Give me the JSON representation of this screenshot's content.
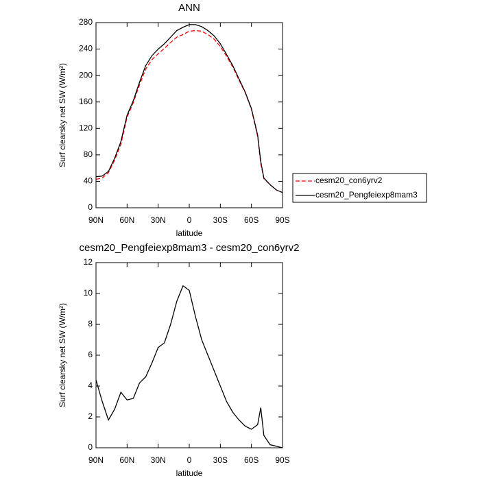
{
  "chart_data": [
    {
      "type": "line",
      "title": "ANN",
      "x_label": "latitude",
      "y_label": "Surf clearsky net SW (W/m²)",
      "x": [
        90,
        84,
        78,
        72,
        66,
        60,
        54,
        48,
        42,
        36,
        30,
        24,
        18,
        12,
        6,
        0,
        -6,
        -12,
        -18,
        -24,
        -30,
        -36,
        -42,
        -48,
        -54,
        -60,
        -66,
        -69,
        -72,
        -78,
        -84,
        -90
      ],
      "series": [
        {
          "name": "cesm20_con6yrv2",
          "color": "#ff0000",
          "dash": true,
          "values": [
            43,
            45,
            53,
            72,
            96,
            137,
            159,
            186,
            210,
            224,
            233,
            241,
            250,
            258,
            262,
            267,
            268,
            267,
            262,
            255,
            244,
            229,
            213,
            193,
            174,
            149,
            108,
            67,
            44,
            35,
            27,
            23
          ]
        },
        {
          "name": "cesm20_Pengfeiexp8mam3",
          "color": "#000000",
          "dash": false,
          "values": [
            47,
            48,
            55,
            75,
            100,
            140,
            162,
            190,
            215,
            230,
            240,
            248,
            258,
            268,
            273,
            277,
            277,
            274,
            268,
            260,
            248,
            232,
            215,
            195,
            175,
            150,
            110,
            70,
            45,
            35,
            27,
            23
          ]
        }
      ],
      "xlim": [
        90,
        -90
      ],
      "xticks": [
        {
          "value": 90,
          "label": "90N"
        },
        {
          "value": 60,
          "label": "60N"
        },
        {
          "value": 30,
          "label": "30N"
        },
        0,
        {
          "value": -30,
          "label": "30S"
        },
        {
          "value": -60,
          "label": "60S"
        },
        {
          "value": -90,
          "label": "90S"
        }
      ],
      "ylim": [
        0,
        280
      ],
      "yticks": [
        0,
        40,
        80,
        120,
        160,
        200,
        240,
        280
      ],
      "legend": "right"
    },
    {
      "type": "line",
      "title": "cesm20_Pengfeiexp8mam3 - cesm20_con6yrv2",
      "x_label": "latitude",
      "y_label": "Surf clearsky net SW (W/m²)",
      "x": [
        90,
        84,
        78,
        72,
        66,
        60,
        54,
        48,
        42,
        36,
        30,
        24,
        18,
        12,
        6,
        0,
        -6,
        -12,
        -18,
        -24,
        -30,
        -36,
        -42,
        -48,
        -54,
        -60,
        -66,
        -69,
        -72,
        -78,
        -84,
        -90
      ],
      "series": [
        {
          "color": "#000000",
          "dash": false,
          "values": [
            4.4,
            3,
            1.8,
            2.5,
            3.6,
            3.1,
            3.2,
            4.2,
            4.6,
            5.5,
            6.5,
            6.8,
            8,
            9.5,
            10.5,
            10.2,
            8.5,
            7,
            6,
            5,
            4,
            3,
            2.3,
            1.8,
            1.4,
            1.2,
            1.5,
            2.6,
            0.8,
            0.2,
            0.1,
            0
          ]
        }
      ],
      "xlim": [
        90,
        -90
      ],
      "xticks": [
        {
          "value": 90,
          "label": "90N"
        },
        {
          "value": 60,
          "label": "60N"
        },
        {
          "value": 30,
          "label": "30N"
        },
        0,
        {
          "value": -30,
          "label": "30S"
        },
        {
          "value": -60,
          "label": "60S"
        },
        {
          "value": -90,
          "label": "90S"
        }
      ],
      "ylim": [
        0,
        12
      ],
      "yticks": [
        0,
        2,
        4,
        6,
        8,
        10,
        12
      ]
    }
  ]
}
